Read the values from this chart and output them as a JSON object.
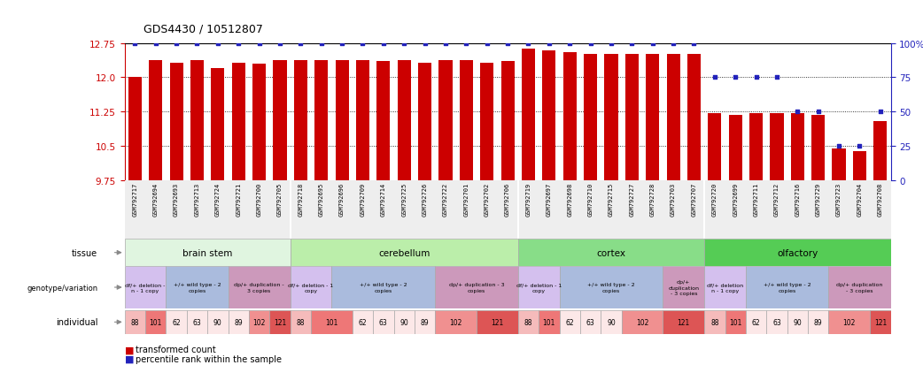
{
  "title": "GDS4430 / 10512807",
  "ylim_left": [
    9.75,
    12.75
  ],
  "ylim_right": [
    0,
    100
  ],
  "yticks_left": [
    9.75,
    10.5,
    11.25,
    12.0,
    12.75
  ],
  "yticks_right": [
    0,
    25,
    50,
    75,
    100
  ],
  "bar_color": "#cc0000",
  "dot_color": "#2222bb",
  "bar_width": 0.65,
  "gsm_ids": [
    "GSM792717",
    "GSM792694",
    "GSM792693",
    "GSM792713",
    "GSM792724",
    "GSM792721",
    "GSM792700",
    "GSM792705",
    "GSM792718",
    "GSM792695",
    "GSM792696",
    "GSM792709",
    "GSM792714",
    "GSM792725",
    "GSM792726",
    "GSM792722",
    "GSM792701",
    "GSM792702",
    "GSM792706",
    "GSM792719",
    "GSM792697",
    "GSM792698",
    "GSM792710",
    "GSM792715",
    "GSM792727",
    "GSM792728",
    "GSM792703",
    "GSM792707",
    "GSM792720",
    "GSM792699",
    "GSM792711",
    "GSM792712",
    "GSM792716",
    "GSM792729",
    "GSM792723",
    "GSM792704",
    "GSM792708"
  ],
  "bar_values": [
    12.0,
    12.38,
    12.32,
    12.38,
    12.2,
    12.32,
    12.3,
    12.38,
    12.38,
    12.38,
    12.38,
    12.38,
    12.36,
    12.38,
    12.32,
    12.38,
    12.38,
    12.32,
    12.36,
    12.62,
    12.58,
    12.55,
    12.52,
    12.52,
    12.52,
    12.52,
    12.52,
    12.52,
    11.22,
    11.18,
    11.22,
    11.22,
    11.22,
    11.18,
    10.45,
    10.38,
    11.05
  ],
  "dot_values": [
    100,
    100,
    100,
    100,
    100,
    100,
    100,
    100,
    100,
    100,
    100,
    100,
    100,
    100,
    100,
    100,
    100,
    100,
    100,
    100,
    100,
    100,
    100,
    100,
    100,
    100,
    100,
    100,
    75,
    75,
    75,
    75,
    50,
    50,
    25,
    25,
    50
  ],
  "tissues": [
    {
      "label": "brain stem",
      "start": 0,
      "end": 8,
      "color": "#e0f5e0"
    },
    {
      "label": "cerebellum",
      "start": 8,
      "end": 19,
      "color": "#bbeeaa"
    },
    {
      "label": "cortex",
      "start": 19,
      "end": 28,
      "color": "#88dd88"
    },
    {
      "label": "olfactory",
      "start": 28,
      "end": 37,
      "color": "#55cc55"
    }
  ],
  "genotypes": [
    {
      "label": "df/+ deletion -\nn - 1 copy",
      "start": 0,
      "end": 2,
      "color": "#d4c0ee"
    },
    {
      "label": "+/+ wild type - 2\ncopies",
      "start": 2,
      "end": 5,
      "color": "#aabbdd"
    },
    {
      "label": "dp/+ duplication -\n3 copies",
      "start": 5,
      "end": 8,
      "color": "#cc99bb"
    },
    {
      "label": "df/+ deletion - 1\ncopy",
      "start": 8,
      "end": 10,
      "color": "#d4c0ee"
    },
    {
      "label": "+/+ wild type - 2\ncopies",
      "start": 10,
      "end": 15,
      "color": "#aabbdd"
    },
    {
      "label": "dp/+ duplication - 3\ncopies",
      "start": 15,
      "end": 19,
      "color": "#cc99bb"
    },
    {
      "label": "df/+ deletion - 1\ncopy",
      "start": 19,
      "end": 21,
      "color": "#d4c0ee"
    },
    {
      "label": "+/+ wild type - 2\ncopies",
      "start": 21,
      "end": 26,
      "color": "#aabbdd"
    },
    {
      "label": "dp/+\nduplication\n- 3 copies",
      "start": 26,
      "end": 28,
      "color": "#cc99bb"
    },
    {
      "label": "df/+ deletion\nn - 1 copy",
      "start": 28,
      "end": 30,
      "color": "#d4c0ee"
    },
    {
      "label": "+/+ wild type - 2\ncopies",
      "start": 30,
      "end": 34,
      "color": "#aabbdd"
    },
    {
      "label": "dp/+ duplication\n- 3 copies",
      "start": 34,
      "end": 37,
      "color": "#cc99bb"
    }
  ],
  "individuals": [
    {
      "label": "88",
      "start": 0,
      "end": 1,
      "color": "#f5bbbb"
    },
    {
      "label": "101",
      "start": 1,
      "end": 2,
      "color": "#ee7777"
    },
    {
      "label": "62",
      "start": 2,
      "end": 3,
      "color": "#fce8e8"
    },
    {
      "label": "63",
      "start": 3,
      "end": 4,
      "color": "#fce8e8"
    },
    {
      "label": "90",
      "start": 4,
      "end": 5,
      "color": "#fce8e8"
    },
    {
      "label": "89",
      "start": 5,
      "end": 6,
      "color": "#fce8e8"
    },
    {
      "label": "102",
      "start": 6,
      "end": 7,
      "color": "#f09090"
    },
    {
      "label": "121",
      "start": 7,
      "end": 8,
      "color": "#dd5555"
    },
    {
      "label": "88",
      "start": 8,
      "end": 9,
      "color": "#f5bbbb"
    },
    {
      "label": "101",
      "start": 9,
      "end": 11,
      "color": "#ee7777"
    },
    {
      "label": "62",
      "start": 11,
      "end": 12,
      "color": "#fce8e8"
    },
    {
      "label": "63",
      "start": 12,
      "end": 13,
      "color": "#fce8e8"
    },
    {
      "label": "90",
      "start": 13,
      "end": 14,
      "color": "#fce8e8"
    },
    {
      "label": "89",
      "start": 14,
      "end": 15,
      "color": "#fce8e8"
    },
    {
      "label": "102",
      "start": 15,
      "end": 17,
      "color": "#f09090"
    },
    {
      "label": "121",
      "start": 17,
      "end": 19,
      "color": "#dd5555"
    },
    {
      "label": "88",
      "start": 19,
      "end": 20,
      "color": "#f5bbbb"
    },
    {
      "label": "101",
      "start": 20,
      "end": 21,
      "color": "#ee7777"
    },
    {
      "label": "62",
      "start": 21,
      "end": 22,
      "color": "#fce8e8"
    },
    {
      "label": "63",
      "start": 22,
      "end": 23,
      "color": "#fce8e8"
    },
    {
      "label": "90",
      "start": 23,
      "end": 24,
      "color": "#fce8e8"
    },
    {
      "label": "102",
      "start": 24,
      "end": 26,
      "color": "#f09090"
    },
    {
      "label": "121",
      "start": 26,
      "end": 28,
      "color": "#dd5555"
    },
    {
      "label": "88",
      "start": 28,
      "end": 29,
      "color": "#f5bbbb"
    },
    {
      "label": "101",
      "start": 29,
      "end": 30,
      "color": "#ee7777"
    },
    {
      "label": "62",
      "start": 30,
      "end": 31,
      "color": "#fce8e8"
    },
    {
      "label": "63",
      "start": 31,
      "end": 32,
      "color": "#fce8e8"
    },
    {
      "label": "90",
      "start": 32,
      "end": 33,
      "color": "#fce8e8"
    },
    {
      "label": "89",
      "start": 33,
      "end": 34,
      "color": "#fce8e8"
    },
    {
      "label": "102",
      "start": 34,
      "end": 36,
      "color": "#f09090"
    },
    {
      "label": "121",
      "start": 36,
      "end": 37,
      "color": "#dd5555"
    }
  ],
  "legend_bar_color": "#cc0000",
  "legend_dot_color": "#2222bb",
  "legend_bar_label": "transformed count",
  "legend_dot_label": "percentile rank within the sample",
  "bg_color": "#ffffff",
  "axis_color_left": "#cc0000",
  "axis_color_right": "#2222bb",
  "row_labels": [
    "tissue",
    "genotype/variation",
    "individual"
  ],
  "row_label_fontsizes": [
    7,
    6.5,
    7
  ]
}
